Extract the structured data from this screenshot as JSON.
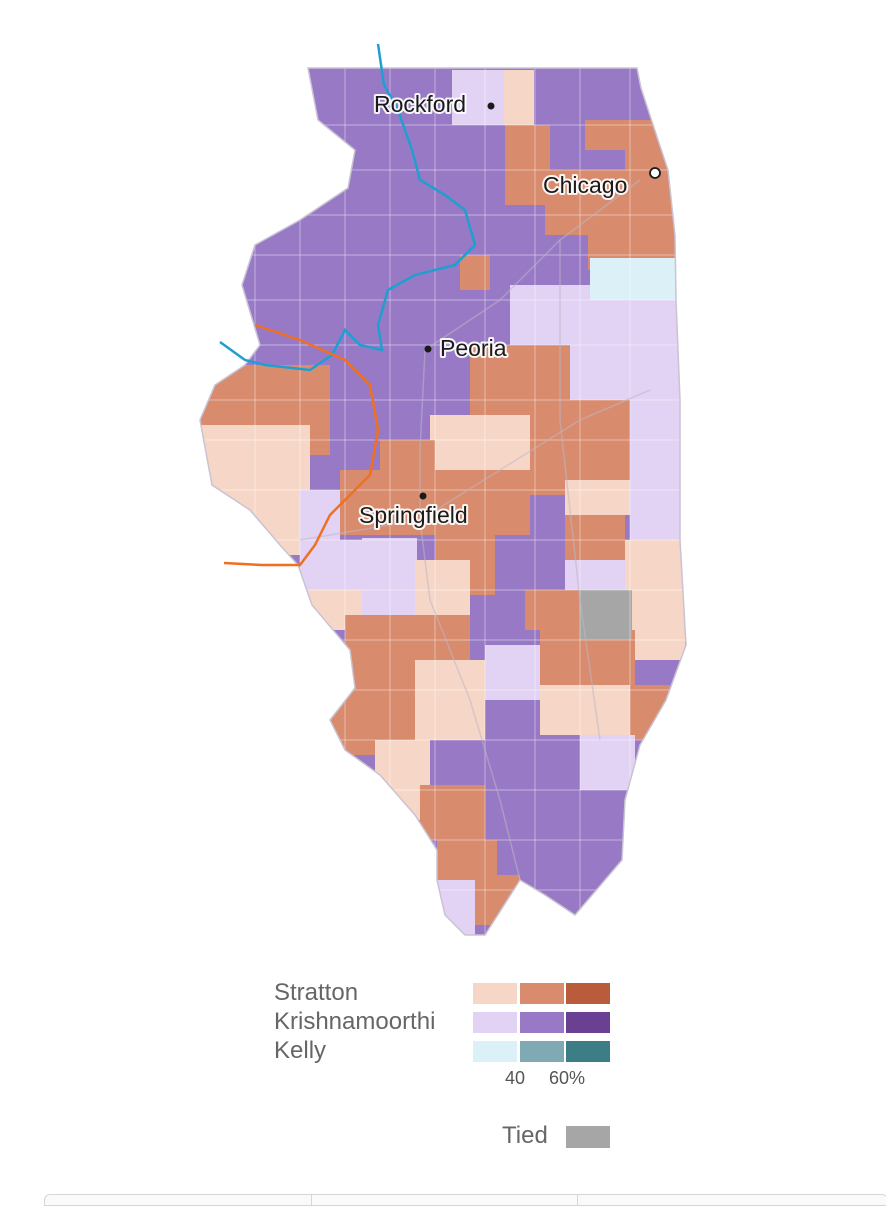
{
  "map": {
    "cities": [
      {
        "name": "Rockford",
        "marker": "filled-dot"
      },
      {
        "name": "Chicago",
        "marker": "open-circle"
      },
      {
        "name": "Peoria",
        "marker": "filled-dot"
      },
      {
        "name": "Springfield",
        "marker": "filled-dot"
      }
    ],
    "overlay_lines": [
      {
        "id": "blue-line",
        "color": "#1f9fd0"
      },
      {
        "id": "orange-line",
        "color": "#f07020"
      }
    ],
    "palette": {
      "stratton": [
        "#f6d7c7",
        "#d88c6d",
        "#b85c3b"
      ],
      "krishnamoorthi": [
        "#e2d2f4",
        "#9879c5",
        "#6a4192"
      ],
      "kelly": [
        "#dcf1f7",
        "#7faab3",
        "#3d7d85"
      ],
      "tied": "#a6a6a6"
    }
  },
  "legend": {
    "candidates": [
      "Stratton",
      "Krishnamoorthi",
      "Kelly"
    ],
    "ticks": [
      "40",
      "60%"
    ],
    "tied_label": "Tied"
  }
}
